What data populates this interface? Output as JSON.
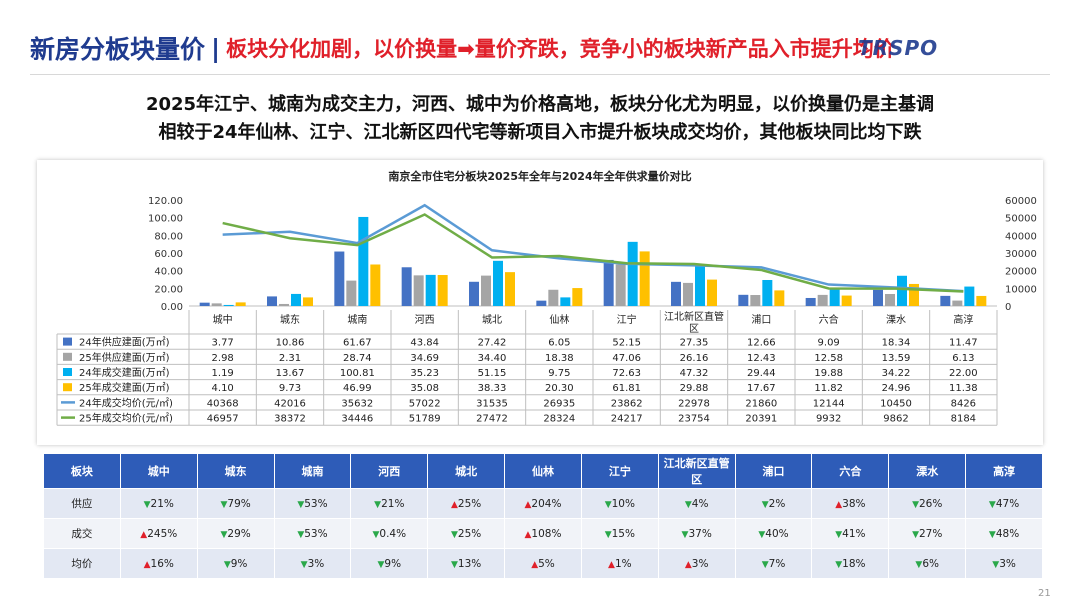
{
  "header": {
    "title": "新房分板块量价",
    "separator": "|",
    "subtitle": "板块分化加剧，以价换量➡量价齐跌，竞争小的板块新产品入市提升均价",
    "logo_text": "TRSPO"
  },
  "headline": {
    "line1": "2025年江宁、城南为成交主力，河西、城中为价格高地，板块分化尤为明显，以价换量仍是主基调",
    "line2": "相较于24年仙林、江宁、江北新区四代宅等新项目入市提升板块成交均价，其他板块同比均下跌"
  },
  "chart_data": {
    "type": "bar",
    "title": "南京全市住宅分板块2025年全年与2024年全年供求量价对比",
    "categories": [
      "城中",
      "城东",
      "城南",
      "河西",
      "城北",
      "仙林",
      "江宁",
      "江北新区直管区",
      "浦口",
      "六合",
      "溧水",
      "高淳"
    ],
    "left_axis": {
      "ylim": [
        0,
        120
      ],
      "ticks": [
        "0.00",
        "20.00",
        "40.00",
        "60.00",
        "80.00",
        "100.00",
        "120.00"
      ]
    },
    "right_axis": {
      "ylim": [
        0,
        60000
      ],
      "ticks": [
        "0",
        "10000",
        "20000",
        "30000",
        "40000",
        "50000",
        "60000"
      ]
    },
    "bar_series": [
      {
        "name": "24年供应建面(万㎡)",
        "color": "#4472c4",
        "values": [
          "3.77",
          "10.86",
          "61.67",
          "43.84",
          "27.42",
          "6.05",
          "52.15",
          "27.35",
          "12.66",
          "9.09",
          "18.34",
          "11.47"
        ]
      },
      {
        "name": "25年供应建面(万㎡)",
        "color": "#a5a5a5",
        "values": [
          "2.98",
          "2.31",
          "28.74",
          "34.69",
          "34.40",
          "18.38",
          "47.06",
          "26.16",
          "12.43",
          "12.58",
          "13.59",
          "6.13"
        ]
      },
      {
        "name": "24年成交建面(万㎡)",
        "color": "#00b0f0",
        "values": [
          "1.19",
          "13.67",
          "100.81",
          "35.23",
          "51.15",
          "9.75",
          "72.63",
          "47.32",
          "29.44",
          "19.88",
          "34.22",
          "22.00"
        ]
      },
      {
        "name": "25年成交建面(万㎡)",
        "color": "#ffc000",
        "values": [
          "4.10",
          "9.73",
          "46.99",
          "35.08",
          "38.33",
          "20.30",
          "61.81",
          "29.88",
          "17.67",
          "11.82",
          "24.96",
          "11.38"
        ]
      }
    ],
    "line_series": [
      {
        "name": "24年成交均价(元/㎡)",
        "color": "#5b9bd5",
        "values": [
          "40368",
          "42016",
          "35632",
          "57022",
          "31535",
          "26935",
          "23862",
          "22978",
          "21860",
          "12144",
          "10450",
          "8426"
        ]
      },
      {
        "name": "25年成交均价(元/㎡)",
        "color": "#70ad47",
        "values": [
          "46957",
          "38372",
          "34446",
          "51789",
          "27472",
          "28324",
          "24217",
          "23754",
          "20391",
          "9932",
          "9862",
          "8184"
        ]
      }
    ]
  },
  "summary_table": {
    "header_label": "板块",
    "columns": [
      "城中",
      "城东",
      "城南",
      "河西",
      "城北",
      "仙林",
      "江宁",
      "江北新区直管区",
      "浦口",
      "六合",
      "溧水",
      "高淳"
    ],
    "rows": [
      {
        "label": "供应",
        "cells": [
          {
            "dir": "down",
            "text": "21%"
          },
          {
            "dir": "down",
            "text": "79%"
          },
          {
            "dir": "down",
            "text": "53%"
          },
          {
            "dir": "down",
            "text": "21%"
          },
          {
            "dir": "up",
            "text": "25%"
          },
          {
            "dir": "up",
            "text": "204%"
          },
          {
            "dir": "down",
            "text": "10%"
          },
          {
            "dir": "down",
            "text": "4%"
          },
          {
            "dir": "down",
            "text": "2%"
          },
          {
            "dir": "up",
            "text": "38%"
          },
          {
            "dir": "down",
            "text": "26%"
          },
          {
            "dir": "down",
            "text": "47%"
          }
        ]
      },
      {
        "label": "成交",
        "cells": [
          {
            "dir": "up",
            "text": "245%"
          },
          {
            "dir": "down",
            "text": "29%"
          },
          {
            "dir": "down",
            "text": "53%"
          },
          {
            "dir": "down",
            "text": "0.4%"
          },
          {
            "dir": "down",
            "text": "25%"
          },
          {
            "dir": "up",
            "text": "108%"
          },
          {
            "dir": "down",
            "text": "15%"
          },
          {
            "dir": "down",
            "text": "37%"
          },
          {
            "dir": "down",
            "text": "40%"
          },
          {
            "dir": "down",
            "text": "41%"
          },
          {
            "dir": "down",
            "text": "27%"
          },
          {
            "dir": "down",
            "text": "48%"
          }
        ]
      },
      {
        "label": "均价",
        "cells": [
          {
            "dir": "up",
            "text": "16%"
          },
          {
            "dir": "down",
            "text": "9%"
          },
          {
            "dir": "down",
            "text": "3%"
          },
          {
            "dir": "down",
            "text": "9%"
          },
          {
            "dir": "down",
            "text": "13%"
          },
          {
            "dir": "up",
            "text": "5%"
          },
          {
            "dir": "up",
            "text": "1%"
          },
          {
            "dir": "up",
            "text": "3%"
          },
          {
            "dir": "down",
            "text": "7%"
          },
          {
            "dir": "down",
            "text": "18%"
          },
          {
            "dir": "down",
            "text": "6%"
          },
          {
            "dir": "down",
            "text": "3%"
          }
        ]
      }
    ],
    "arrows": {
      "up": "▲",
      "down": "▼"
    },
    "colors": {
      "up": "#e0202a",
      "down": "#2aa84a",
      "header_bg": "#2e5cb8"
    }
  },
  "footer": {
    "page_number": "21"
  }
}
